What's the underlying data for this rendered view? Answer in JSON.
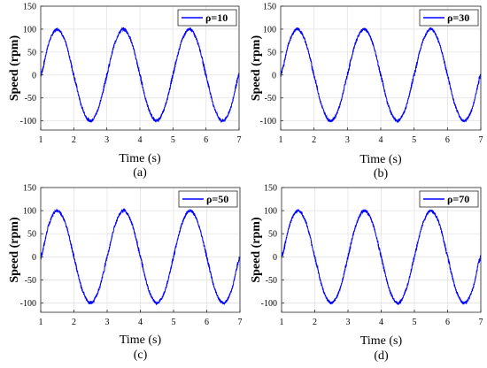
{
  "chart_data": [
    {
      "type": "line",
      "caption": "(a)",
      "xlabel": "Time (s)",
      "ylabel": "Speed (rpm)",
      "xlim": [
        1,
        7
      ],
      "ylim": [
        -120,
        150
      ],
      "xticks": [
        "1",
        "2",
        "3",
        "4",
        "5",
        "6",
        "7"
      ],
      "xtick_values": [
        1,
        2,
        3,
        4,
        5,
        6,
        7
      ],
      "yticks": [
        "-100",
        "-50",
        "0",
        "50",
        "100",
        "150"
      ],
      "ytick_values": [
        -100,
        -50,
        0,
        50,
        100,
        150
      ],
      "grid": true,
      "legend_position": "top-right",
      "series": [
        {
          "name": "ρ=10",
          "color": "#0000ff",
          "x": [
            1.0,
            1.25,
            1.5,
            1.75,
            2.0,
            2.25,
            2.5,
            2.75,
            3.0,
            3.25,
            3.5,
            3.75,
            4.0,
            4.25,
            4.5,
            4.75,
            5.0,
            5.25,
            5.5,
            5.75,
            6.0,
            6.25,
            6.5,
            6.75,
            7.0
          ],
          "y": [
            0,
            71,
            100,
            71,
            0,
            -71,
            -100,
            -71,
            0,
            71,
            100,
            71,
            0,
            -71,
            -100,
            -71,
            0,
            71,
            100,
            71,
            0,
            -71,
            -100,
            -71,
            0
          ]
        }
      ]
    },
    {
      "type": "line",
      "caption": "(b)",
      "xlabel": "Time (s)",
      "ylabel": "Speed (rpm)",
      "xlim": [
        1,
        7
      ],
      "ylim": [
        -120,
        150
      ],
      "xticks": [
        "1",
        "2",
        "3",
        "4",
        "5",
        "6",
        "7"
      ],
      "xtick_values": [
        1,
        2,
        3,
        4,
        5,
        6,
        7
      ],
      "yticks": [
        "-100",
        "-50",
        "0",
        "50",
        "100",
        "150"
      ],
      "ytick_values": [
        -100,
        -50,
        0,
        50,
        100,
        150
      ],
      "grid": true,
      "legend_position": "top-right",
      "series": [
        {
          "name": "ρ=30",
          "color": "#0000ff",
          "x": [
            1.0,
            1.25,
            1.5,
            1.75,
            2.0,
            2.25,
            2.5,
            2.75,
            3.0,
            3.25,
            3.5,
            3.75,
            4.0,
            4.25,
            4.5,
            4.75,
            5.0,
            5.25,
            5.5,
            5.75,
            6.0,
            6.25,
            6.5,
            6.75,
            7.0
          ],
          "y": [
            0,
            71,
            100,
            71,
            0,
            -71,
            -100,
            -71,
            0,
            71,
            100,
            71,
            0,
            -71,
            -100,
            -71,
            0,
            71,
            100,
            71,
            0,
            -71,
            -100,
            -71,
            0
          ]
        }
      ]
    },
    {
      "type": "line",
      "caption": "(c)",
      "xlabel": "Time (s)",
      "ylabel": "Speed (rpm)",
      "xlim": [
        1,
        7
      ],
      "ylim": [
        -120,
        150
      ],
      "xticks": [
        "1",
        "2",
        "3",
        "4",
        "5",
        "6",
        "7"
      ],
      "xtick_values": [
        1,
        2,
        3,
        4,
        5,
        6,
        7
      ],
      "yticks": [
        "-100",
        "-50",
        "0",
        "50",
        "100",
        "150"
      ],
      "ytick_values": [
        -100,
        -50,
        0,
        50,
        100,
        150
      ],
      "grid": true,
      "legend_position": "top-right",
      "series": [
        {
          "name": "ρ=50",
          "color": "#0000ff",
          "x": [
            1.0,
            1.25,
            1.5,
            1.75,
            2.0,
            2.25,
            2.5,
            2.75,
            3.0,
            3.25,
            3.5,
            3.75,
            4.0,
            4.25,
            4.5,
            4.75,
            5.0,
            5.25,
            5.5,
            5.75,
            6.0,
            6.25,
            6.5,
            6.75,
            7.0
          ],
          "y": [
            0,
            71,
            100,
            71,
            0,
            -71,
            -100,
            -71,
            0,
            71,
            100,
            71,
            0,
            -71,
            -100,
            -71,
            0,
            71,
            100,
            71,
            0,
            -71,
            -100,
            -71,
            0
          ]
        }
      ]
    },
    {
      "type": "line",
      "caption": "(d)",
      "xlabel": "Time (s)",
      "ylabel": "Speed (rpm)",
      "xlim": [
        1,
        7
      ],
      "ylim": [
        -120,
        150
      ],
      "xticks": [
        "1",
        "2",
        "3",
        "4",
        "5",
        "6",
        "7"
      ],
      "xtick_values": [
        1,
        2,
        3,
        4,
        5,
        6,
        7
      ],
      "yticks": [
        "-100",
        "-50",
        "0",
        "50",
        "100",
        "150"
      ],
      "ytick_values": [
        -100,
        -50,
        0,
        50,
        100,
        150
      ],
      "grid": true,
      "legend_position": "top-right",
      "series": [
        {
          "name": "ρ=70",
          "color": "#0000ff",
          "x": [
            1.0,
            1.25,
            1.5,
            1.75,
            2.0,
            2.25,
            2.5,
            2.75,
            3.0,
            3.25,
            3.5,
            3.75,
            4.0,
            4.25,
            4.5,
            4.75,
            5.0,
            5.25,
            5.5,
            5.75,
            6.0,
            6.25,
            6.5,
            6.75,
            7.0
          ],
          "y": [
            0,
            71,
            100,
            71,
            0,
            -71,
            -100,
            -71,
            0,
            71,
            100,
            71,
            0,
            -71,
            -100,
            -71,
            0,
            71,
            100,
            71,
            0,
            -71,
            -100,
            -71,
            0
          ]
        }
      ]
    }
  ]
}
